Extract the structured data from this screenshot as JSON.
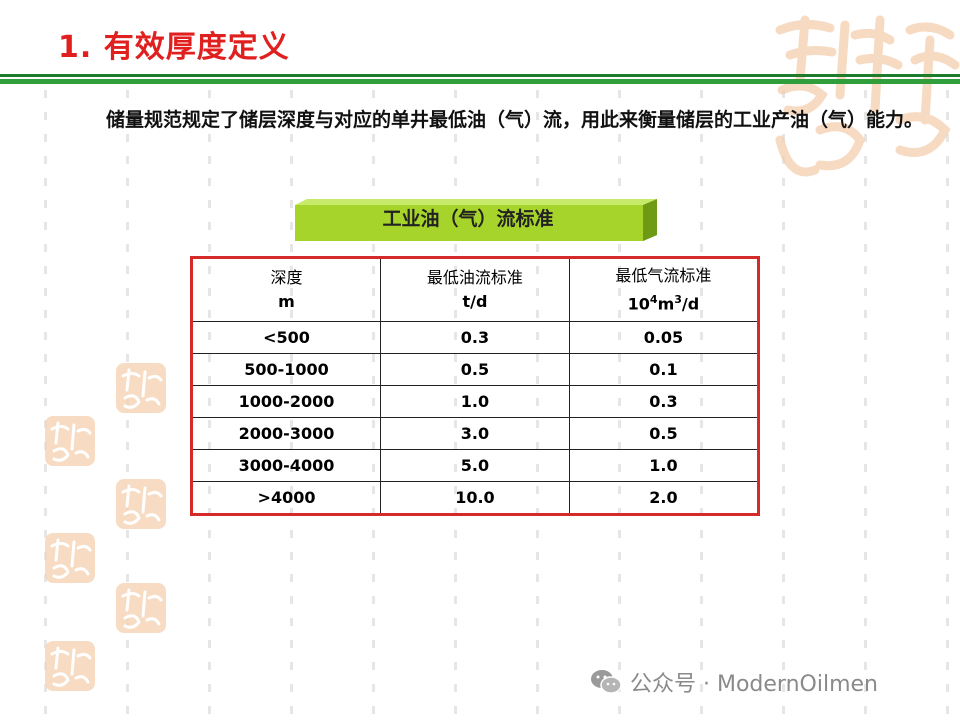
{
  "slide": {
    "title": "1. 有效厚度定义",
    "paragraph": "储量规范规定了储层深度与对应的单井最低油（气）流，用此来衡量储层的工业产油（气）能力。"
  },
  "table": {
    "caption": "工业油（气）流标准",
    "headers": [
      {
        "cn": "深度",
        "unit": "m"
      },
      {
        "cn": "最低油流标准",
        "unit": "t/d"
      },
      {
        "cn": "最低气流标准",
        "unit_base": "10",
        "unit_sup1": "4",
        "unit_mid": "m",
        "unit_sup2": "3",
        "unit_end": "/d"
      }
    ],
    "rows": [
      {
        "depth": "<500",
        "oil": "0.3",
        "gas": "0.05"
      },
      {
        "depth": "500-1000",
        "oil": "0.5",
        "gas": "0.1"
      },
      {
        "depth": "1000-2000",
        "oil": "1.0",
        "gas": "0.3"
      },
      {
        "depth": "2000-3000",
        "oil": "3.0",
        "gas": "0.5"
      },
      {
        "depth": "3000-4000",
        "oil": "5.0",
        "gas": "1.0"
      },
      {
        "depth": ">4000",
        "oil": "10.0",
        "gas": "2.0"
      }
    ]
  },
  "watermark": {
    "text": "公众号 · ModernOilmen",
    "icon": "wechat-icon"
  },
  "colors": {
    "title": "#e0201f",
    "rule": "#2f9e3b",
    "banner": "#a6d42a",
    "table_border": "#d42a2a",
    "deco": "#f2c9a6"
  }
}
